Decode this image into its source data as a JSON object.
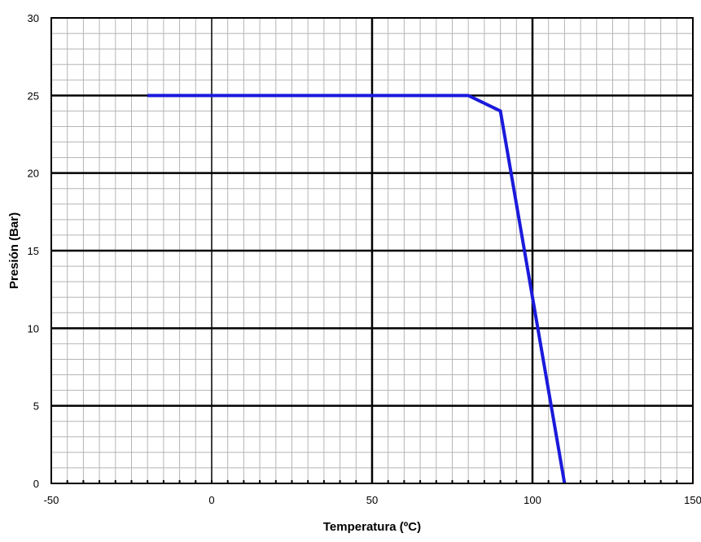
{
  "chart_data": {
    "type": "line",
    "xlabel": "Temperatura (ºC)",
    "ylabel": "Presión  (Bar)",
    "xlim": [
      -50,
      150
    ],
    "ylim": [
      0,
      30
    ],
    "x_ticks": [
      -50,
      0,
      50,
      100,
      150
    ],
    "y_ticks": [
      0,
      5,
      10,
      15,
      20,
      25,
      30
    ],
    "x_tick_labels": [
      "-50",
      "0",
      "50",
      "100",
      "150"
    ],
    "y_tick_labels": [
      "0",
      "5",
      "10",
      "15",
      "20",
      "25",
      "30"
    ],
    "major_x_step": 50,
    "minor_x_step": 5,
    "major_y_step": 5,
    "minor_y_step": 1,
    "grid": true,
    "legend": "none",
    "series": [
      {
        "color": "#1a1adb",
        "points": [
          {
            "x": -20,
            "y": 25
          },
          {
            "x": 80,
            "y": 25
          },
          {
            "x": 90,
            "y": 24
          },
          {
            "x": 110,
            "y": 0
          }
        ]
      }
    ]
  }
}
